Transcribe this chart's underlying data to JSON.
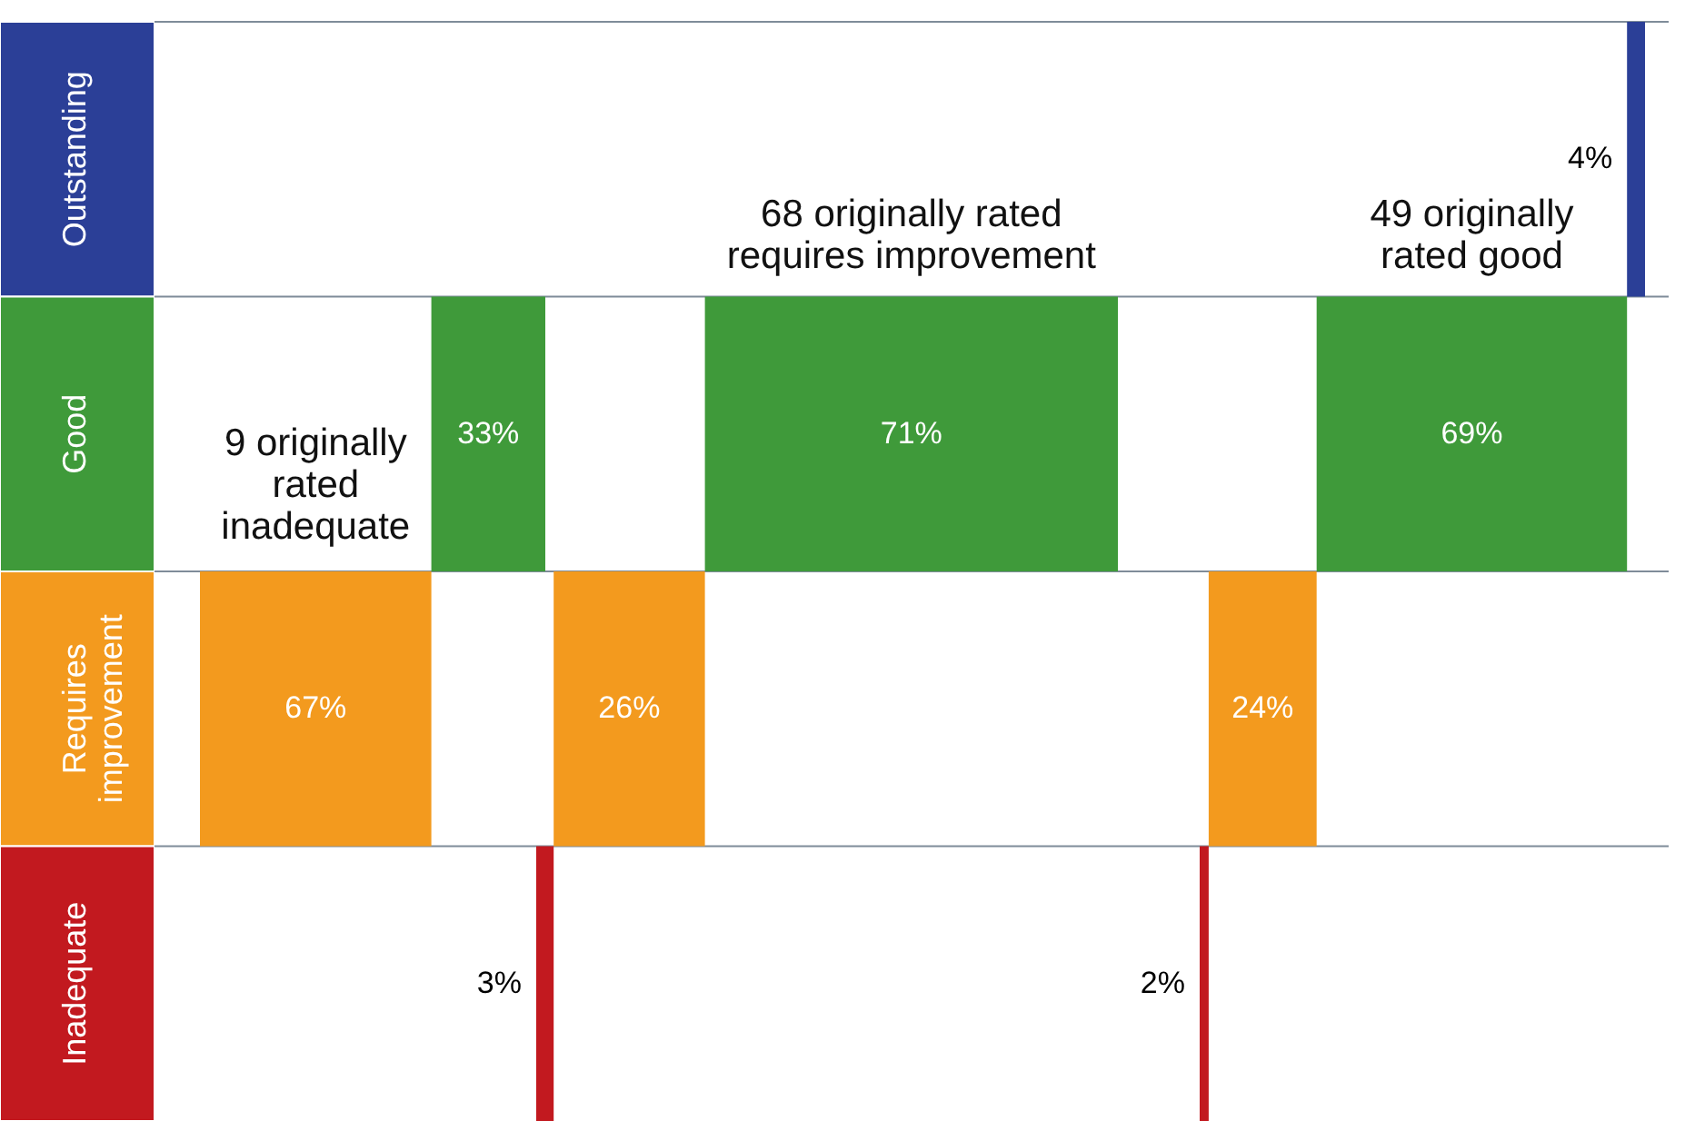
{
  "chart_data": {
    "type": "other",
    "categories": [
      "Outstanding",
      "Good",
      "Requires improvement",
      "Inadequate"
    ],
    "colors": [
      "#2b3f97",
      "#3f9a3a",
      "#f39a1e",
      "#c2191f"
    ],
    "series": [
      {
        "name": "9 originally rated inadequate",
        "values": [
          null,
          33,
          67,
          null
        ],
        "value_labels": [
          null,
          "33%",
          "67%",
          null
        ],
        "colors": [
          null,
          "#3f9a3a",
          "#f39a1e",
          null
        ]
      },
      {
        "name": "68 originally rated requires improvement",
        "values": [
          null,
          71,
          26,
          3
        ],
        "value_labels": [
          null,
          "71%",
          "26%",
          "3%"
        ],
        "colors": [
          null,
          "#3f9a3a",
          "#f39a1e",
          "#c2191f"
        ]
      },
      {
        "name": "49 originally rated good",
        "values": [
          4,
          69,
          24,
          2
        ],
        "value_labels": [
          "4%",
          "69%",
          "24%",
          "2%"
        ],
        "colors": [
          "#2b3f97",
          "#3f9a3a",
          "#f39a1e",
          "#c2191f"
        ]
      }
    ]
  }
}
